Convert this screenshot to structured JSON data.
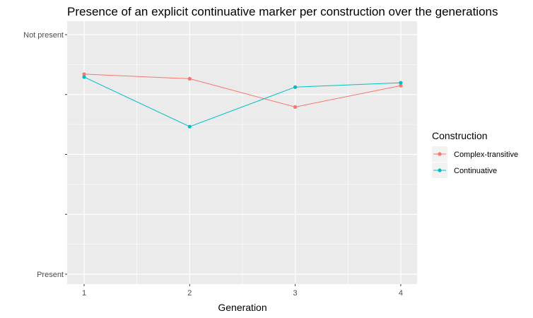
{
  "chart_data": {
    "type": "line",
    "title": "Presence of an explicit continuative marker per construction over the generations",
    "xlabel": "Generation",
    "ylabel": "",
    "x": [
      1,
      2,
      3,
      4
    ],
    "x_tick_labels": [
      "1",
      "2",
      "3",
      "4"
    ],
    "ylim": [
      0,
      1
    ],
    "y_ticks": [
      0,
      0.25,
      0.5,
      0.75,
      1
    ],
    "y_tick_labels": [
      "Present",
      "",
      "",
      "",
      "Not present"
    ],
    "grid": true,
    "legend": {
      "title": "Construction",
      "position": "right"
    },
    "series": [
      {
        "name": "Complex-transitive",
        "color": "#F8766D",
        "values": [
          0.835,
          0.816,
          0.698,
          0.787
        ]
      },
      {
        "name": "Continuative",
        "color": "#00BFC4",
        "values": [
          0.823,
          0.616,
          0.781,
          0.799
        ]
      }
    ]
  }
}
